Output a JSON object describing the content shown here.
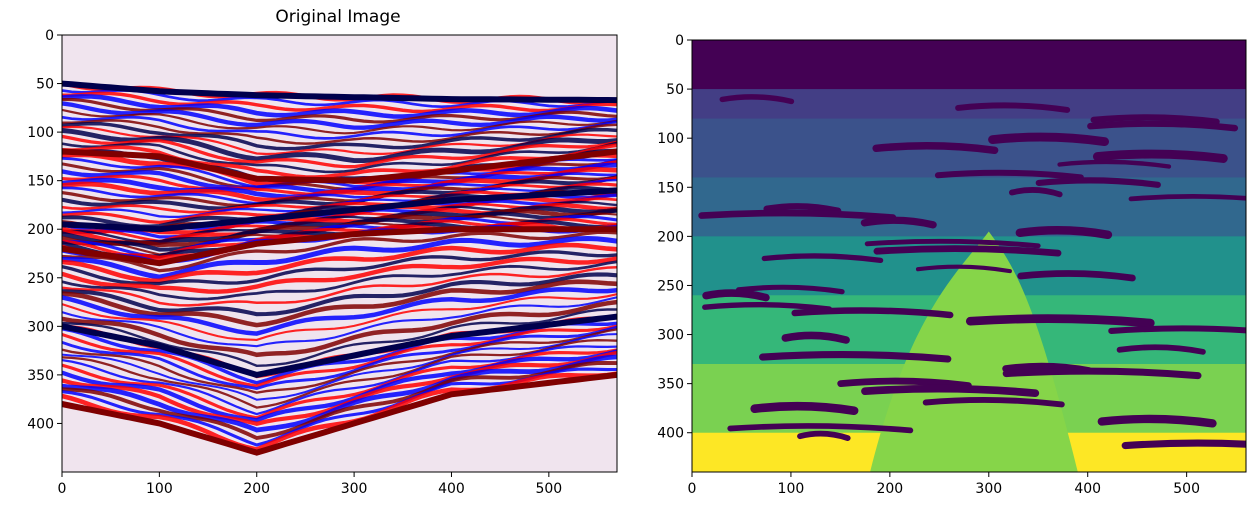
{
  "chart_data": [
    {
      "type": "heatmap",
      "title": "Original Image",
      "colormap": "seismic",
      "colormap_colors": [
        "#00004c",
        "#0000ff",
        "#ffffff",
        "#ff0000",
        "#7f0000"
      ],
      "image_width": 570,
      "image_height": 450,
      "xlim": [
        0,
        570
      ],
      "ylim": [
        450,
        0
      ],
      "x_ticks": [
        0,
        100,
        200,
        300,
        400,
        500
      ],
      "y_ticks": [
        0,
        50,
        100,
        150,
        200,
        250,
        300,
        350,
        400
      ],
      "reflectors": [
        {
          "y": [
            50,
            58,
            62,
            64,
            66,
            67
          ],
          "x": [
            0,
            100,
            200,
            300,
            400,
            570
          ],
          "polarity": "blue"
        },
        {
          "y": [
            120,
            125,
            148,
            150,
            140,
            120
          ],
          "x": [
            0,
            100,
            200,
            300,
            400,
            570
          ],
          "polarity": "red"
        },
        {
          "y": [
            195,
            200,
            190,
            180,
            170,
            160
          ],
          "x": [
            0,
            100,
            200,
            300,
            400,
            570
          ],
          "polarity": "blue"
        },
        {
          "y": [
            220,
            235,
            215,
            205,
            200,
            200
          ],
          "x": [
            0,
            100,
            200,
            300,
            400,
            570
          ],
          "polarity": "red"
        },
        {
          "y": [
            300,
            320,
            350,
            330,
            310,
            290
          ],
          "x": [
            0,
            100,
            200,
            300,
            400,
            570
          ],
          "polarity": "blue"
        },
        {
          "y": [
            380,
            400,
            430,
            400,
            370,
            350
          ],
          "x": [
            0,
            100,
            200,
            300,
            400,
            570
          ],
          "polarity": "red"
        }
      ]
    },
    {
      "type": "heatmap",
      "title": "",
      "colormap": "viridis",
      "colormap_colors": [
        "#440154",
        "#3b528b",
        "#21918c",
        "#5ec962",
        "#fde725"
      ],
      "image_width": 560,
      "image_height": 440,
      "xlim": [
        0,
        560
      ],
      "ylim": [
        440,
        0
      ],
      "x_ticks": [
        0,
        100,
        200,
        300,
        400,
        500
      ],
      "y_ticks": [
        0,
        50,
        100,
        150,
        200,
        250,
        300,
        350,
        400
      ],
      "regions": [
        {
          "label": 0,
          "color": "#440154",
          "y_range": [
            0,
            50
          ]
        },
        {
          "label": 1,
          "color": "#433e85",
          "y_range": [
            50,
            80
          ]
        },
        {
          "label": 2,
          "color": "#3b528b",
          "y_range": [
            80,
            140
          ]
        },
        {
          "label": 3,
          "color": "#31688e",
          "y_range": [
            140,
            200
          ]
        },
        {
          "label": 4,
          "color": "#21918c",
          "y_range": [
            200,
            260
          ]
        },
        {
          "label": 5,
          "color": "#35b779",
          "y_range": [
            260,
            330
          ]
        },
        {
          "label": 6,
          "color": "#7ad151",
          "y_range": [
            330,
            400
          ]
        },
        {
          "label": 7,
          "color": "#fde725",
          "y_range": [
            400,
            440
          ]
        }
      ],
      "salt_body": {
        "color": "#86d549",
        "apex": [
          300,
          195
        ],
        "base_x": [
          180,
          390
        ],
        "base_y": 440
      }
    }
  ]
}
